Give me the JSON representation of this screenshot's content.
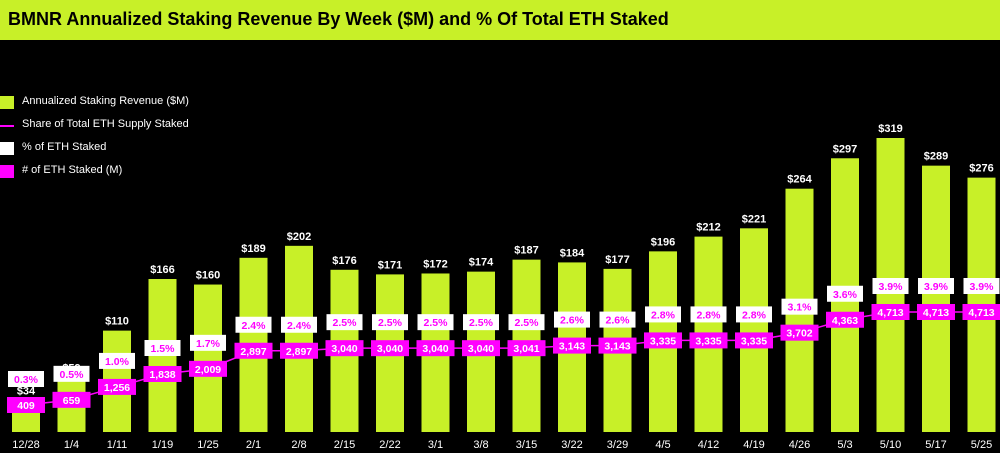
{
  "chart_data": {
    "type": "bar",
    "title": "BMNR Annualized Staking Revenue By Week ($M) and % Of Total ETH Staked",
    "categories": [
      "12/28",
      "1/4",
      "1/11",
      "1/19",
      "1/25",
      "2/1",
      "2/8",
      "2/15",
      "2/22",
      "3/1",
      "3/8",
      "3/15",
      "3/22",
      "3/29",
      "4/5",
      "4/12",
      "4/19",
      "4/26",
      "5/3",
      "5/10",
      "5/17",
      "5/25"
    ],
    "series": [
      {
        "name": "Annualized Staking Revenue ($M)",
        "type": "bar",
        "values": [
          34,
          59,
          110,
          166,
          160,
          189,
          202,
          176,
          171,
          172,
          174,
          187,
          184,
          177,
          196,
          212,
          221,
          264,
          297,
          319,
          289,
          276
        ],
        "labels": [
          "$34",
          "$59",
          "$110",
          "$166",
          "$160",
          "$189",
          "$202",
          "$176",
          "$171",
          "$172",
          "$174",
          "$187",
          "$184",
          "$177",
          "$196",
          "$212",
          "$221",
          "$264",
          "$297",
          "$319",
          "$289",
          "$276"
        ]
      },
      {
        "name": "Share of Total ETH Supply Staked",
        "type": "line",
        "values": [
          0.3,
          0.5,
          1.0,
          1.5,
          1.7,
          2.4,
          2.4,
          2.5,
          2.5,
          2.5,
          2.5,
          2.5,
          2.6,
          2.6,
          2.8,
          2.8,
          2.8,
          3.1,
          3.6,
          3.9,
          3.9,
          3.9
        ]
      },
      {
        "name": "% of ETH Staked",
        "type": "label",
        "labels": [
          "0.3%",
          "0.5%",
          "1.0%",
          "1.5%",
          "1.7%",
          "2.4%",
          "2.4%",
          "2.5%",
          "2.5%",
          "2.5%",
          "2.5%",
          "2.5%",
          "2.6%",
          "2.6%",
          "2.8%",
          "2.8%",
          "2.8%",
          "3.1%",
          "3.6%",
          "3.9%",
          "3.9%",
          "3.9%"
        ]
      },
      {
        "name": "# of ETH Staked (M)",
        "type": "label",
        "values": [
          409,
          659,
          1256,
          1838,
          2009,
          2897,
          2897,
          3040,
          3040,
          3040,
          3040,
          3041,
          3143,
          3143,
          3335,
          3335,
          3335,
          3702,
          4363,
          4713,
          4713,
          4713
        ],
        "labels": [
          "409",
          "659",
          "1,256",
          "1,838",
          "2,009",
          "2,897",
          "2,897",
          "3,040",
          "3,040",
          "3,040",
          "3,040",
          "3,041",
          "3,143",
          "3,143",
          "3,335",
          "3,335",
          "3,335",
          "3,702",
          "4,363",
          "4,713",
          "4,713",
          "4,713"
        ]
      }
    ],
    "ylim": [
      0,
      340
    ],
    "grid": false,
    "legend_position": "top-left"
  },
  "legend": {
    "items": [
      {
        "label": "Annualized Staking Revenue ($M)",
        "kind": "swatch",
        "color": "#c8f028"
      },
      {
        "label": "Share of Total ETH Supply Staked",
        "kind": "line",
        "color": "#ff00ff"
      },
      {
        "label": "% of ETH Staked",
        "kind": "swatch",
        "color": "#ffffff"
      },
      {
        "label": "# of ETH Staked (M)",
        "kind": "swatch",
        "color": "#ff00ff"
      }
    ]
  },
  "colors": {
    "bar": "#c8f028",
    "line": "#ff00ff",
    "pct_box_bg": "#ffffff",
    "pct_text": "#ff00ff",
    "count_box_bg": "#ff00ff",
    "count_text": "#ffffff",
    "axis_text": "#ffffff",
    "title_bg": "#c8f028"
  }
}
